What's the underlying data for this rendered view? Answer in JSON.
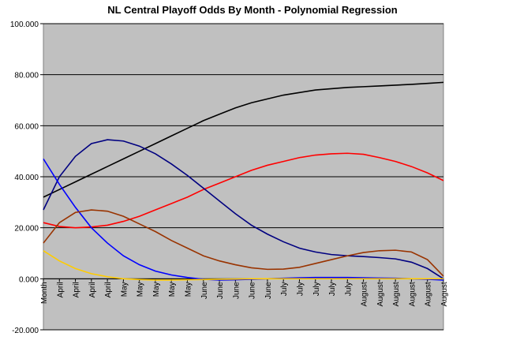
{
  "chart_data": {
    "type": "line",
    "title": "NL Central Playoff Odds By Month - Polynomial Regression",
    "categories": [
      "Month",
      "April",
      "April",
      "April",
      "April",
      "May",
      "May",
      "May",
      "May",
      "May",
      "June",
      "June",
      "June",
      "June",
      "June",
      "July",
      "July",
      "July",
      "July",
      "July",
      "August",
      "August",
      "August",
      "August",
      "August",
      "August"
    ],
    "series": [
      {
        "color": "#000000",
        "values": [
          32,
          35,
          38,
          41,
          44,
          47,
          50,
          53,
          56,
          59,
          62,
          64.5,
          67,
          69,
          70.5,
          72,
          73,
          74,
          74.5,
          75,
          75.3,
          75.6,
          75.9,
          76.2,
          76.6,
          77
        ]
      },
      {
        "color": "#ff0000",
        "values": [
          22,
          20.5,
          20,
          20.3,
          21,
          22.5,
          24.5,
          27,
          29.5,
          32,
          35,
          37.5,
          40,
          42.5,
          44.5,
          46,
          47.5,
          48.5,
          49,
          49.2,
          48.8,
          47.5,
          46,
          44,
          41.5,
          38.5
        ]
      },
      {
        "color": "#000080",
        "values": [
          27,
          40,
          48,
          53,
          54.5,
          54,
          52,
          49,
          45,
          40.5,
          35.5,
          30.5,
          25.5,
          21,
          17.5,
          14.5,
          12,
          10.5,
          9.5,
          9,
          8.7,
          8.3,
          7.8,
          6.5,
          4,
          0
        ]
      },
      {
        "color": "#0000ff",
        "values": [
          47,
          37,
          28,
          20,
          14,
          9,
          5.5,
          3,
          1.5,
          0.5,
          -0.2,
          -0.5,
          -0.4,
          -0.2,
          0,
          0.2,
          0.4,
          0.5,
          0.5,
          0.5,
          0.4,
          0.3,
          0.2,
          0,
          -0.2,
          -0.5
        ]
      },
      {
        "color": "#993300",
        "values": [
          14,
          22,
          26,
          27,
          26.5,
          24.5,
          21.5,
          18.5,
          15,
          12,
          9,
          7,
          5.5,
          4.3,
          3.7,
          3.8,
          4.5,
          6,
          7.5,
          9,
          10.3,
          11,
          11.2,
          10.5,
          7.5,
          1
        ]
      },
      {
        "color": "#ffcc00",
        "values": [
          11,
          7,
          4,
          2,
          0.8,
          0,
          -0.3,
          -0.5,
          -0.5,
          -0.4,
          -0.3,
          -0.2,
          -0.1,
          0,
          0,
          0,
          0,
          0,
          0,
          0,
          0,
          0,
          0,
          0,
          0,
          0
        ]
      }
    ],
    "ylim": [
      -20,
      100
    ],
    "yticks": [
      {
        "value": -20,
        "label": "-20.000"
      },
      {
        "value": 0,
        "label": "0.000"
      },
      {
        "value": 20,
        "label": "20.000"
      },
      {
        "value": 40,
        "label": "40.000"
      },
      {
        "value": 60,
        "label": "60.000"
      },
      {
        "value": 80,
        "label": "80.000"
      },
      {
        "value": 100,
        "label": "100.000"
      }
    ],
    "grid": true
  }
}
